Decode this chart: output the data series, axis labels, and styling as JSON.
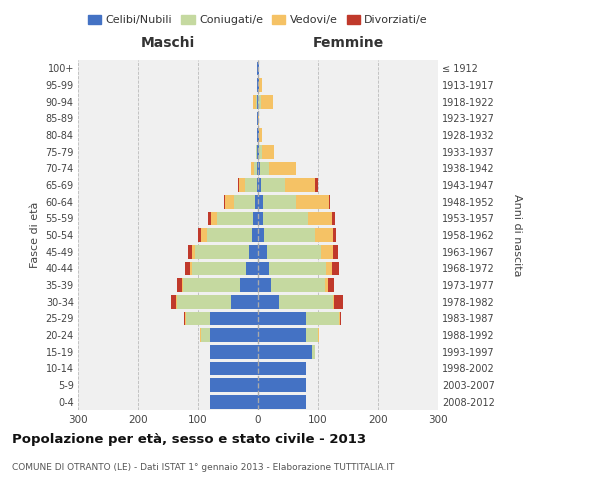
{
  "age_groups": [
    "100+",
    "95-99",
    "90-94",
    "85-89",
    "80-84",
    "75-79",
    "70-74",
    "65-69",
    "60-64",
    "55-59",
    "50-54",
    "45-49",
    "40-44",
    "35-39",
    "30-34",
    "25-29",
    "20-24",
    "15-19",
    "10-14",
    "5-9",
    "0-4"
  ],
  "birth_years": [
    "≤ 1912",
    "1913-1917",
    "1918-1922",
    "1923-1927",
    "1928-1932",
    "1933-1937",
    "1938-1942",
    "1943-1947",
    "1948-1952",
    "1953-1957",
    "1958-1962",
    "1963-1967",
    "1968-1972",
    "1973-1977",
    "1978-1982",
    "1983-1987",
    "1988-1992",
    "1993-1997",
    "1998-2002",
    "2003-2007",
    "2008-2012"
  ],
  "colors": {
    "celibi": "#4472c4",
    "coniugati": "#c5d9a0",
    "vedovi": "#f5c265",
    "divorziati": "#c0392b"
  },
  "xlim": 300,
  "title": "Popolazione per età, sesso e stato civile - 2013",
  "subtitle": "COMUNE DI OTRANTO (LE) - Dati ISTAT 1° gennaio 2013 - Elaborazione TUTTITALIA.IT",
  "ylabel_left": "Fasce di età",
  "ylabel_right": "Anni di nascita",
  "xlabel_left": "Maschi",
  "xlabel_right": "Femmine",
  "bg_color": "#ffffff",
  "grid_color": "#cccccc",
  "maschi_cel": [
    80,
    80,
    80,
    80,
    80,
    80,
    45,
    30,
    20,
    15,
    10,
    8,
    5,
    2,
    2,
    1,
    2,
    1,
    1,
    1,
    1
  ],
  "maschi_con": [
    0,
    0,
    0,
    0,
    15,
    40,
    90,
    95,
    90,
    90,
    75,
    60,
    35,
    20,
    5,
    2,
    0,
    0,
    2,
    0,
    0
  ],
  "maschi_ved": [
    0,
    0,
    0,
    0,
    1,
    1,
    2,
    2,
    3,
    5,
    10,
    10,
    15,
    10,
    5,
    1,
    0,
    1,
    5,
    0,
    0
  ],
  "maschi_div": [
    0,
    0,
    0,
    0,
    1,
    2,
    8,
    8,
    8,
    7,
    5,
    5,
    2,
    2,
    0,
    0,
    0,
    0,
    0,
    0,
    0
  ],
  "femmine_cel": [
    80,
    80,
    80,
    90,
    80,
    80,
    35,
    22,
    18,
    15,
    10,
    8,
    8,
    5,
    3,
    2,
    1,
    0,
    0,
    2,
    1
  ],
  "femmine_con": [
    0,
    0,
    0,
    5,
    20,
    55,
    90,
    90,
    95,
    90,
    85,
    75,
    55,
    40,
    15,
    5,
    0,
    0,
    5,
    0,
    0
  ],
  "femmine_ved": [
    0,
    0,
    0,
    0,
    1,
    1,
    2,
    5,
    10,
    20,
    30,
    40,
    55,
    50,
    45,
    20,
    5,
    1,
    20,
    5,
    1
  ],
  "femmine_div": [
    0,
    0,
    0,
    0,
    1,
    2,
    15,
    10,
    12,
    8,
    5,
    5,
    2,
    5,
    0,
    0,
    0,
    0,
    0,
    0,
    0
  ]
}
